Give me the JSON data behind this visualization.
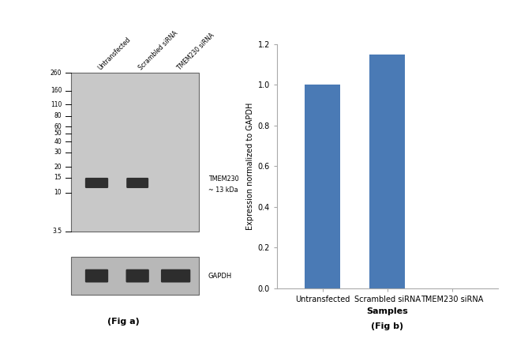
{
  "fig_width": 6.5,
  "fig_height": 4.29,
  "dpi": 100,
  "background_color": "#ffffff",
  "bar_categories": [
    "Untransfected",
    "Scrambled siRNA",
    "TMEM230 siRNA"
  ],
  "bar_values": [
    1.0,
    1.15,
    0.0
  ],
  "bar_color": "#4a7ab5",
  "bar_ylim": [
    0,
    1.2
  ],
  "bar_yticks": [
    0,
    0.2,
    0.4,
    0.6,
    0.8,
    1.0,
    1.2
  ],
  "bar_xlabel": "Samples",
  "bar_ylabel": "Expression normalized to GAPDH",
  "bar_xlabel_fontsize": 8,
  "bar_ylabel_fontsize": 7,
  "bar_xtick_fontsize": 7,
  "bar_ytick_fontsize": 7,
  "fig_b_label": "(Fig b)",
  "fig_a_label": "(Fig a)",
  "wb_marker_labels": [
    "260",
    "160",
    "110",
    "80",
    "60",
    "50",
    "40",
    "30",
    "20",
    "15",
    "10",
    "3.5"
  ],
  "wb_marker_positions": [
    260,
    160,
    110,
    80,
    60,
    50,
    40,
    30,
    20,
    15,
    10,
    3.5
  ],
  "wb_annotation_line1": "TMEM230",
  "wb_annotation_line2": "~ 13 kDa",
  "wb_gapdh_label": "GAPDH",
  "wb_lane_labels": [
    "Untransfected",
    "Scrambled siRNA",
    "TMEM230 siRNA"
  ],
  "wb_bg_color": "#c8c8c8",
  "wb_band_color": "#1a1a1a",
  "wb_gapdh_bg_color": "#b8b8b8"
}
